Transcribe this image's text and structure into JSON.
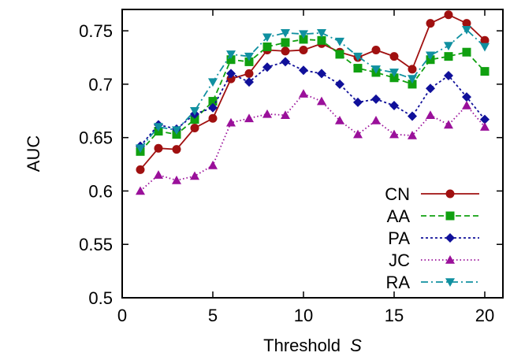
{
  "chart_data": {
    "type": "line",
    "title": "",
    "xlabel": "Threshold",
    "xlabel_var": "S",
    "ylabel": "AUC",
    "xlim": [
      0,
      21
    ],
    "ylim": [
      0.5,
      0.77
    ],
    "xticks": [
      0,
      5,
      10,
      15,
      20
    ],
    "yticks": [
      0.5,
      0.55,
      0.6,
      0.65,
      0.7,
      0.75
    ],
    "ytick_labels": [
      "0.5",
      "0.55",
      "0.6",
      "0.65",
      "0.7",
      "0.75"
    ],
    "grid": false,
    "legend_position": "bottom-right",
    "x": [
      1,
      2,
      3,
      4,
      5,
      6,
      7,
      8,
      9,
      10,
      11,
      12,
      13,
      14,
      15,
      16,
      17,
      18,
      19,
      20
    ],
    "series": [
      {
        "name": "CN",
        "color": "#a01010",
        "marker": "circle",
        "dash": "",
        "values": [
          0.62,
          0.64,
          0.639,
          0.659,
          0.668,
          0.705,
          0.71,
          0.732,
          0.731,
          0.732,
          0.738,
          0.73,
          0.725,
          0.732,
          0.726,
          0.714,
          0.757,
          0.765,
          0.757,
          0.741
        ]
      },
      {
        "name": "AA",
        "color": "#10a010",
        "marker": "square",
        "dash": "7,4",
        "values": [
          0.637,
          0.656,
          0.653,
          0.667,
          0.684,
          0.723,
          0.721,
          0.735,
          0.739,
          0.742,
          0.741,
          0.728,
          0.715,
          0.711,
          0.706,
          0.7,
          0.723,
          0.726,
          0.73,
          0.712
        ]
      },
      {
        "name": "PA",
        "color": "#10109a",
        "marker": "diamond",
        "dash": "3,3",
        "values": [
          0.642,
          0.662,
          0.658,
          0.672,
          0.678,
          0.71,
          0.702,
          0.716,
          0.721,
          0.713,
          0.71,
          0.7,
          0.683,
          0.686,
          0.68,
          0.67,
          0.696,
          0.708,
          0.688,
          0.667
        ]
      },
      {
        "name": "JC",
        "color": "#9a109a",
        "marker": "triangle-up",
        "dash": "1.5,3",
        "values": [
          0.6,
          0.615,
          0.61,
          0.614,
          0.624,
          0.664,
          0.668,
          0.672,
          0.671,
          0.691,
          0.684,
          0.666,
          0.653,
          0.666,
          0.653,
          0.652,
          0.671,
          0.662,
          0.68,
          0.66
        ]
      },
      {
        "name": "RA",
        "color": "#1090a0",
        "marker": "triangle-down",
        "dash": "9,4,2,4",
        "values": [
          0.64,
          0.66,
          0.657,
          0.675,
          0.702,
          0.728,
          0.726,
          0.744,
          0.748,
          0.747,
          0.748,
          0.74,
          0.726,
          0.714,
          0.711,
          0.705,
          0.727,
          0.736,
          0.751,
          0.735
        ]
      }
    ]
  }
}
